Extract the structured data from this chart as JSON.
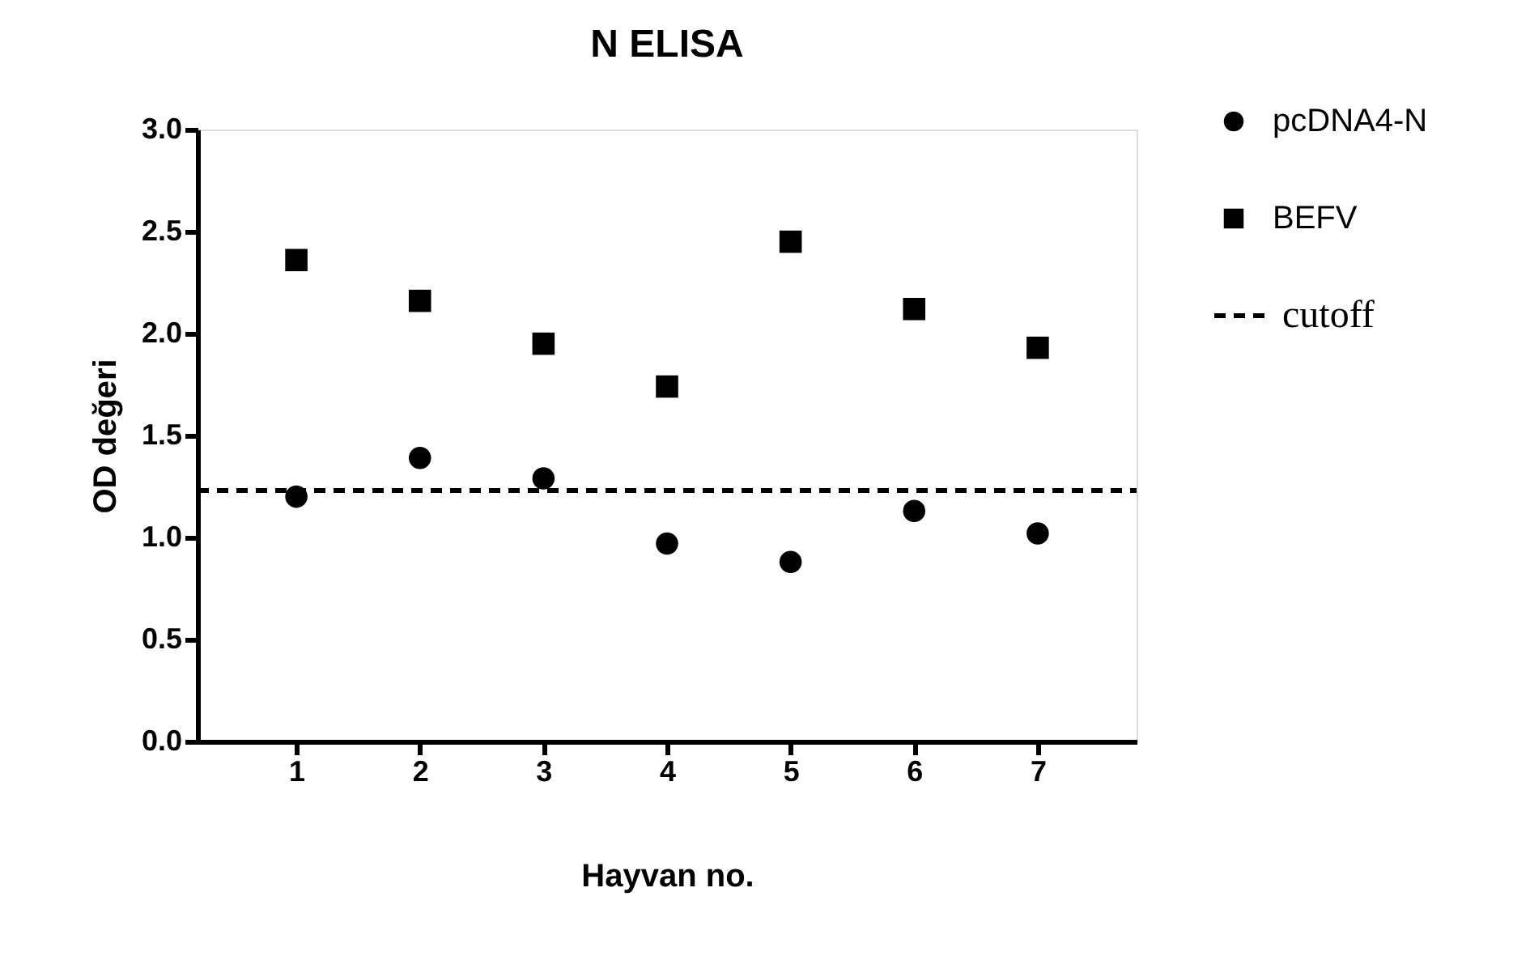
{
  "chart_data": {
    "type": "scatter",
    "title": "N ELISA",
    "xlabel": "Hayvan no.",
    "ylabel": "OD değeri",
    "categories": [
      "1",
      "2",
      "3",
      "4",
      "5",
      "6",
      "7"
    ],
    "series": [
      {
        "name": "pcDNA4-N",
        "color": "#000000",
        "marker": "circle",
        "values": [
          1.2,
          1.39,
          1.29,
          0.97,
          0.88,
          1.13,
          1.02
        ]
      },
      {
        "name": "BEFV",
        "color": "#000000",
        "marker": "square",
        "values": [
          2.36,
          2.16,
          1.95,
          1.74,
          2.45,
          2.12,
          1.93
        ]
      }
    ],
    "ref_lines": [
      {
        "axis": "y",
        "value": 1.23,
        "label": "cutoff",
        "color": "#000000",
        "line_style": "dashed"
      }
    ],
    "ylim": [
      0,
      3.0
    ],
    "yticks": [
      {
        "value": 0,
        "label": "0.0"
      },
      {
        "value": 0.5,
        "label": "0.5"
      },
      {
        "value": 1.0,
        "label": "1.0"
      },
      {
        "value": 1.5,
        "label": "1.5"
      },
      {
        "value": 2.0,
        "label": "2.0"
      },
      {
        "value": 2.5,
        "label": "2.5"
      },
      {
        "value": 3.0,
        "label": "3.0"
      }
    ],
    "grid": false,
    "legend": "right"
  }
}
